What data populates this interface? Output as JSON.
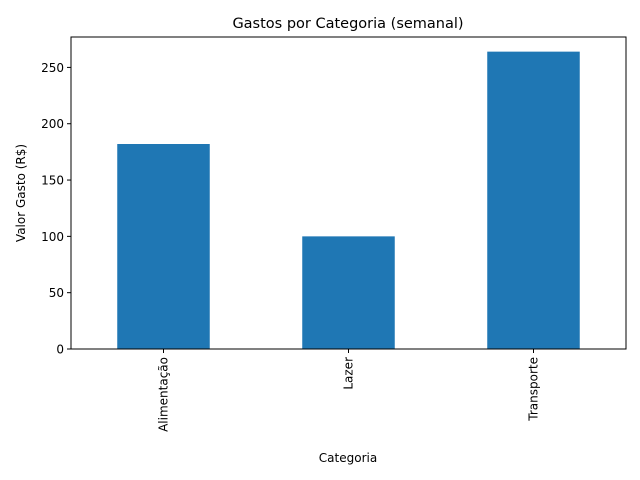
{
  "chart_data": {
    "type": "bar",
    "title": "Gastos por Categoria (semanal)",
    "xlabel": "Categoria",
    "ylabel": "Valor Gasto (R$)",
    "categories": [
      "Alimentação",
      "Lazer",
      "Transporte"
    ],
    "values": [
      182,
      100,
      264
    ],
    "ylim": [
      0,
      277
    ],
    "yticks": [
      0,
      50,
      100,
      150,
      200,
      250
    ],
    "grid": false,
    "legend": "none",
    "bar_color": "#1f77b4"
  }
}
